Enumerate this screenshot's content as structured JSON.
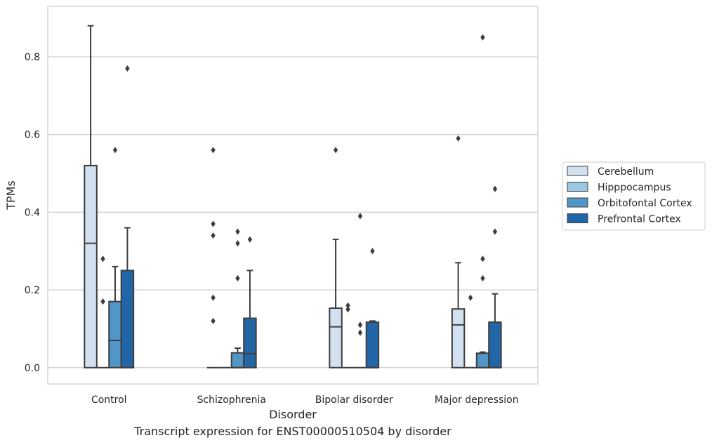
{
  "chart_data": {
    "type": "box",
    "caption": "Transcript expression for ENST00000510504 by disorder",
    "xlabel": "Disorder",
    "ylabel": "TPMs",
    "ylim": [
      -0.042,
      0.93
    ],
    "yticks": [
      0.0,
      0.2,
      0.4,
      0.6,
      0.8
    ],
    "ytick_labels": [
      "0.0",
      "0.2",
      "0.4",
      "0.6",
      "0.8"
    ],
    "grid": "horizontal",
    "legend_position": "right",
    "categories": [
      "Control",
      "Schizophrenia",
      "Bipolar disorder",
      "Major depression"
    ],
    "series": [
      {
        "name": "Cerebellum",
        "color": "#d1e1f0",
        "boxes": [
          {
            "q1": 0.0,
            "median": 0.32,
            "q3": 0.52,
            "whisker_low": 0.0,
            "whisker_high": 0.88,
            "outliers": []
          },
          {
            "q1": 0.0,
            "median": 0.0,
            "q3": 0.0,
            "whisker_low": 0.0,
            "whisker_high": 0.0,
            "outliers": [
              0.56,
              0.37,
              0.34,
              0.18,
              0.12
            ]
          },
          {
            "q1": 0.0,
            "median": 0.105,
            "q3": 0.153,
            "whisker_low": 0.0,
            "whisker_high": 0.33,
            "outliers": [
              0.56
            ]
          },
          {
            "q1": 0.0,
            "median": 0.11,
            "q3": 0.151,
            "whisker_low": 0.0,
            "whisker_high": 0.27,
            "outliers": [
              0.59
            ]
          }
        ]
      },
      {
        "name": "Hipppocampus",
        "color": "#9ac8e0",
        "boxes": [
          {
            "q1": 0.0,
            "median": 0.0,
            "q3": 0.0,
            "whisker_low": 0.0,
            "whisker_high": 0.0,
            "outliers": [
              0.28,
              0.17
            ]
          },
          {
            "q1": 0.0,
            "median": 0.0,
            "q3": 0.0,
            "whisker_low": 0.0,
            "whisker_high": 0.0,
            "outliers": []
          },
          {
            "q1": 0.0,
            "median": 0.0,
            "q3": 0.0,
            "whisker_low": 0.0,
            "whisker_high": 0.0,
            "outliers": [
              0.16,
              0.15
            ]
          },
          {
            "q1": 0.0,
            "median": 0.0,
            "q3": 0.0,
            "whisker_low": 0.0,
            "whisker_high": 0.0,
            "outliers": [
              0.18
            ]
          }
        ]
      },
      {
        "name": "Orbitofontal Cortex",
        "color": "#5296c7",
        "boxes": [
          {
            "q1": 0.0,
            "median": 0.07,
            "q3": 0.17,
            "whisker_low": 0.0,
            "whisker_high": 0.26,
            "outliers": [
              0.56
            ]
          },
          {
            "q1": 0.0,
            "median": 0.0,
            "q3": 0.038,
            "whisker_low": 0.0,
            "whisker_high": 0.05,
            "outliers": [
              0.35,
              0.32,
              0.23
            ]
          },
          {
            "q1": 0.0,
            "median": 0.0,
            "q3": 0.0,
            "whisker_low": 0.0,
            "whisker_high": 0.0,
            "outliers": [
              0.39,
              0.11,
              0.09
            ]
          },
          {
            "q1": 0.0,
            "median": 0.0,
            "q3": 0.037,
            "whisker_low": 0.0,
            "whisker_high": 0.04,
            "outliers": [
              0.85,
              0.28,
              0.23
            ]
          }
        ]
      },
      {
        "name": "Prefrontal Cortex",
        "color": "#2366a8",
        "boxes": [
          {
            "q1": 0.0,
            "median": 0.0,
            "q3": 0.25,
            "whisker_low": 0.0,
            "whisker_high": 0.36,
            "outliers": [
              0.77
            ]
          },
          {
            "q1": 0.0,
            "median": 0.036,
            "q3": 0.127,
            "whisker_low": 0.0,
            "whisker_high": 0.25,
            "outliers": [
              0.33
            ]
          },
          {
            "q1": 0.0,
            "median": 0.0,
            "q3": 0.117,
            "whisker_low": 0.0,
            "whisker_high": 0.12,
            "outliers": [
              0.3
            ]
          },
          {
            "q1": 0.0,
            "median": 0.0,
            "q3": 0.117,
            "whisker_low": 0.0,
            "whisker_high": 0.19,
            "outliers": [
              0.46,
              0.35
            ]
          }
        ]
      }
    ],
    "colors": {
      "grid": "#cccccc",
      "frame": "#cccccc",
      "box_edge": "#3d3d3d",
      "outlier": "#3d3d3d",
      "text": "#262626"
    }
  }
}
